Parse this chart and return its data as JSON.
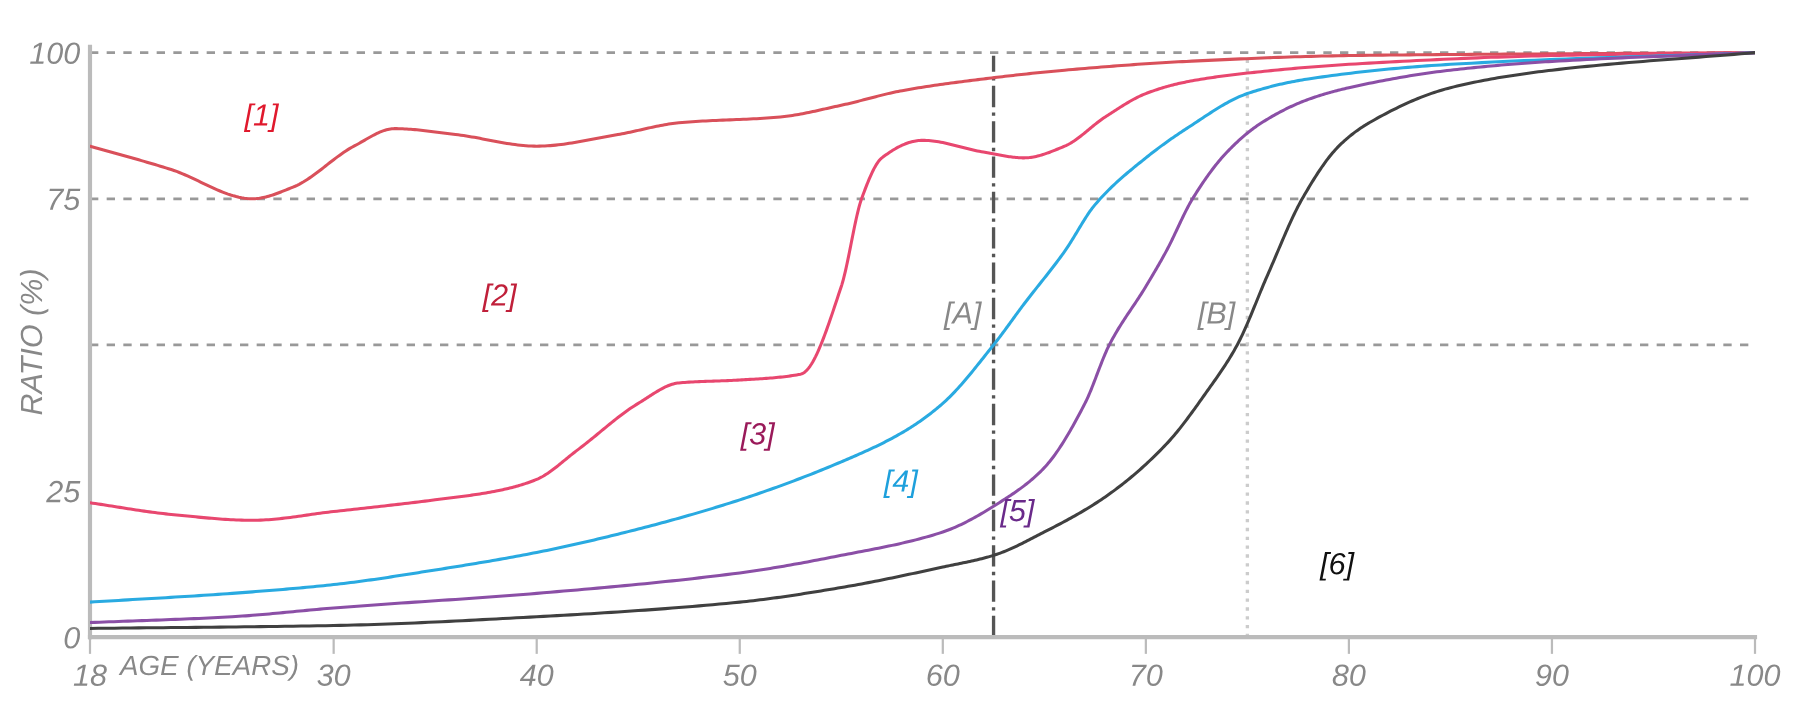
{
  "chart_data": {
    "type": "line",
    "xlabel": "AGE (YEARS)",
    "ylabel": "RATIO (%)",
    "xlim": [
      18,
      100
    ],
    "xticks": [
      18,
      30,
      40,
      50,
      60,
      70,
      80,
      90,
      100
    ],
    "ylim": [
      0,
      101
    ],
    "yticks": [
      0,
      25,
      75,
      100
    ],
    "grid": false,
    "marker": "none",
    "line_style": "solid",
    "series": [
      {
        "color": "#d9505a",
        "x": [
          18,
          22,
          26,
          28,
          31,
          33,
          36,
          40,
          44,
          47,
          52,
          55,
          58,
          62,
          66,
          72,
          80,
          90,
          100
        ],
        "values": [
          84,
          80,
          75,
          77,
          84,
          87,
          86,
          84,
          86,
          88,
          89,
          91,
          93.5,
          95.5,
          97,
          98.5,
          99.5,
          99.8,
          100
        ]
      },
      {
        "color": "#e8476f",
        "x": [
          18,
          22,
          26,
          30,
          35,
          38,
          40,
          42,
          45,
          47,
          50,
          53,
          55,
          56,
          57,
          59,
          62,
          64,
          66,
          68,
          70,
          72,
          75,
          80,
          90,
          100
        ],
        "values": [
          23,
          21,
          20,
          21.5,
          23.5,
          25,
          27,
          32,
          40,
          43.5,
          44,
          45,
          60,
          75,
          82,
          85,
          83,
          82,
          84,
          89,
          93,
          95,
          96.5,
          98,
          99.5,
          100
        ]
      },
      {
        "color": "#29aae1",
        "x": [
          18,
          25,
          30,
          35,
          40,
          45,
          50,
          55,
          58,
          60,
          62.5,
          64,
          66,
          67.5,
          70,
          72,
          75,
          78,
          85,
          100
        ],
        "values": [
          6,
          7.5,
          9,
          11.5,
          14.5,
          18.5,
          23.5,
          30,
          35,
          40,
          50,
          57,
          66,
          74,
          82,
          87,
          93,
          95.5,
          98,
          100
        ]
      },
      {
        "color": "#8b4fa6",
        "x": [
          18,
          25,
          30,
          40,
          50,
          55,
          60,
          63,
          65,
          67,
          68.2,
          70,
          71,
          72.3,
          74,
          75.7,
          78,
          80,
          85,
          90,
          100
        ],
        "values": [
          2.5,
          3.5,
          5,
          7.5,
          11,
          14,
          18,
          23.5,
          29,
          40,
          50,
          60,
          66,
          75,
          83,
          88,
          92,
          94,
          97,
          98.5,
          100
        ]
      },
      {
        "color": "#404040",
        "x": [
          18,
          30,
          40,
          50,
          55,
          60,
          62.5,
          65,
          68,
          71,
          73,
          74.5,
          76,
          77.7,
          79.5,
          81,
          85,
          90,
          100
        ],
        "values": [
          1.5,
          2,
          3.5,
          6,
          8.5,
          12,
          14,
          18,
          24,
          33,
          42,
          50,
          62,
          75,
          84,
          88,
          94,
          97,
          100
        ]
      }
    ],
    "ref_lines": [
      {
        "axis": "y",
        "value": 100,
        "color": "#999999",
        "line_style": "dashed"
      },
      {
        "axis": "y",
        "value": 75,
        "color": "#999999",
        "line_style": "dashed"
      },
      {
        "axis": "y",
        "value": 50,
        "color": "#999999",
        "line_style": "dashed"
      },
      {
        "axis": "x",
        "value": 62.5,
        "label": "[A]",
        "color": "#555555",
        "line_style": "dashdot"
      },
      {
        "axis": "x",
        "value": 75,
        "label": "[B]",
        "color": "#cccccc",
        "line_style": "dotted"
      }
    ],
    "annotations": [
      "[1]",
      "[2]",
      "[3]",
      "[4]",
      "[5]",
      "[6]"
    ]
  }
}
